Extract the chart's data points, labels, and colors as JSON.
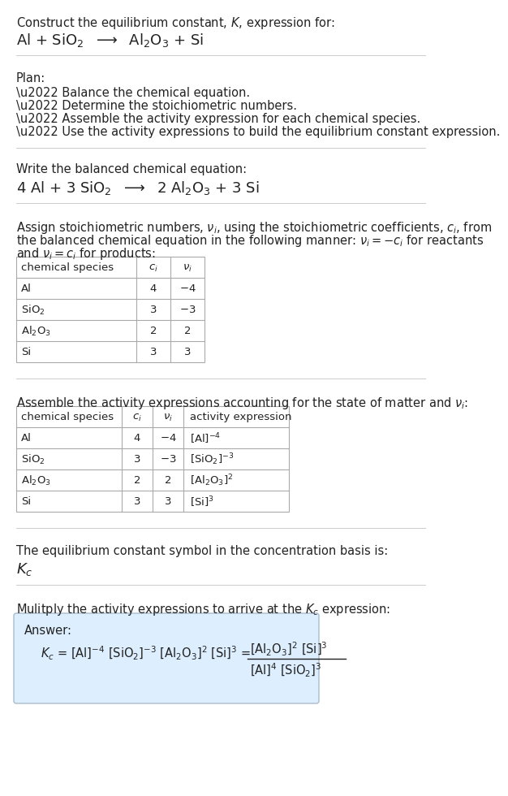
{
  "bg_color": "#ffffff",
  "text_color": "#222222",
  "table_border_color": "#aaaaaa",
  "answer_box_color": "#ddeeff",
  "answer_box_border": "#aabbcc",
  "separator_color": "#cccccc",
  "title_line1": "Construct the equilibrium constant, $K$, expression for:",
  "title_line2": "Al + SiO$_2$  $\\longrightarrow$  Al$_2$O$_3$ + Si",
  "plan_header": "Plan:",
  "plan_bullets": [
    "\\u2022 Balance the chemical equation.",
    "\\u2022 Determine the stoichiometric numbers.",
    "\\u2022 Assemble the activity expression for each chemical species.",
    "\\u2022 Use the activity expressions to build the equilibrium constant expression."
  ],
  "balanced_header": "Write the balanced chemical equation:",
  "balanced_eq": "4 Al + 3 SiO$_2$  $\\longrightarrow$  2 Al$_2$O$_3$ + 3 Si",
  "stoich_line1": "Assign stoichiometric numbers, $\\nu_i$, using the stoichiometric coefficients, $c_i$, from",
  "stoich_line2": "the balanced chemical equation in the following manner: $\\nu_i = -c_i$ for reactants",
  "stoich_line3": "and $\\nu_i = c_i$ for products:",
  "table1_rows": [
    [
      "chemical species",
      "$c_i$",
      "$\\nu_i$"
    ],
    [
      "Al",
      "4",
      "$-$4"
    ],
    [
      "SiO$_2$",
      "3",
      "$-$3"
    ],
    [
      "Al$_2$O$_3$",
      "2",
      "2"
    ],
    [
      "Si",
      "3",
      "3"
    ]
  ],
  "activity_line": "Assemble the activity expressions accounting for the state of matter and $\\nu_i$:",
  "table2_rows": [
    [
      "chemical species",
      "$c_i$",
      "$\\nu_i$",
      "activity expression"
    ],
    [
      "Al",
      "4",
      "$-$4",
      "[Al]$^{-4}$"
    ],
    [
      "SiO$_2$",
      "3",
      "$-$3",
      "[SiO$_2$]$^{-3}$"
    ],
    [
      "Al$_2$O$_3$",
      "2",
      "2",
      "[Al$_2$O$_3$]$^2$"
    ],
    [
      "Si",
      "3",
      "3",
      "[Si]$^3$"
    ]
  ],
  "kc_header": "The equilibrium constant symbol in the concentration basis is:",
  "kc_symbol": "$K_c$",
  "multiply_header": "Mulitply the activity expressions to arrive at the $K_c$ expression:",
  "answer_label": "Answer:",
  "kc_expr": "$K_c$ = [Al]$^{-4}$ [SiO$_2$]$^{-3}$ [Al$_2$O$_3$]$^2$ [Si]$^3$ =",
  "frac_num": "[Al$_2$O$_3$]$^2$ [Si]$^3$",
  "frac_den": "[Al]$^4$ [SiO$_2$]$^3$"
}
